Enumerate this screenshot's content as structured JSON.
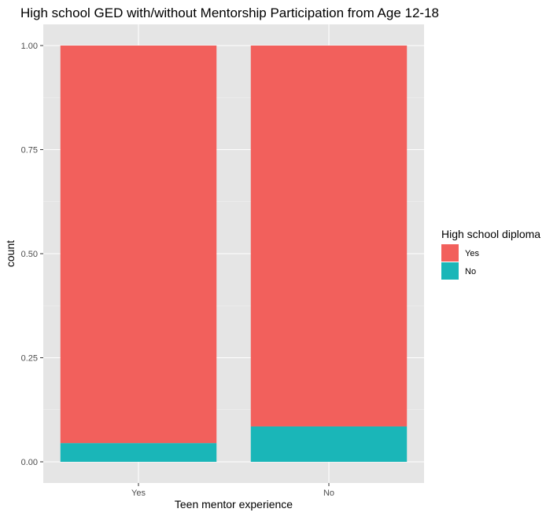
{
  "chart_data": {
    "type": "bar",
    "stacked": true,
    "title": "High school GED with/without Mentorship Participation from Age 12-18",
    "xlabel": "Teen mentor experience",
    "ylabel": "count",
    "categories": [
      "Yes",
      "No"
    ],
    "ylim": [
      0,
      1
    ],
    "yticks": [
      "0.00",
      "0.25",
      "0.50",
      "0.75",
      "1.00"
    ],
    "grid": true,
    "legend": {
      "title": "High school diploma",
      "placement": "right",
      "entries": [
        "Yes",
        "No"
      ]
    },
    "series": [
      {
        "name": "No",
        "color": "#1ab6b8",
        "values": [
          0.045,
          0.085
        ]
      },
      {
        "name": "Yes",
        "color": "#f2605c",
        "values": [
          0.955,
          0.915
        ]
      }
    ]
  }
}
